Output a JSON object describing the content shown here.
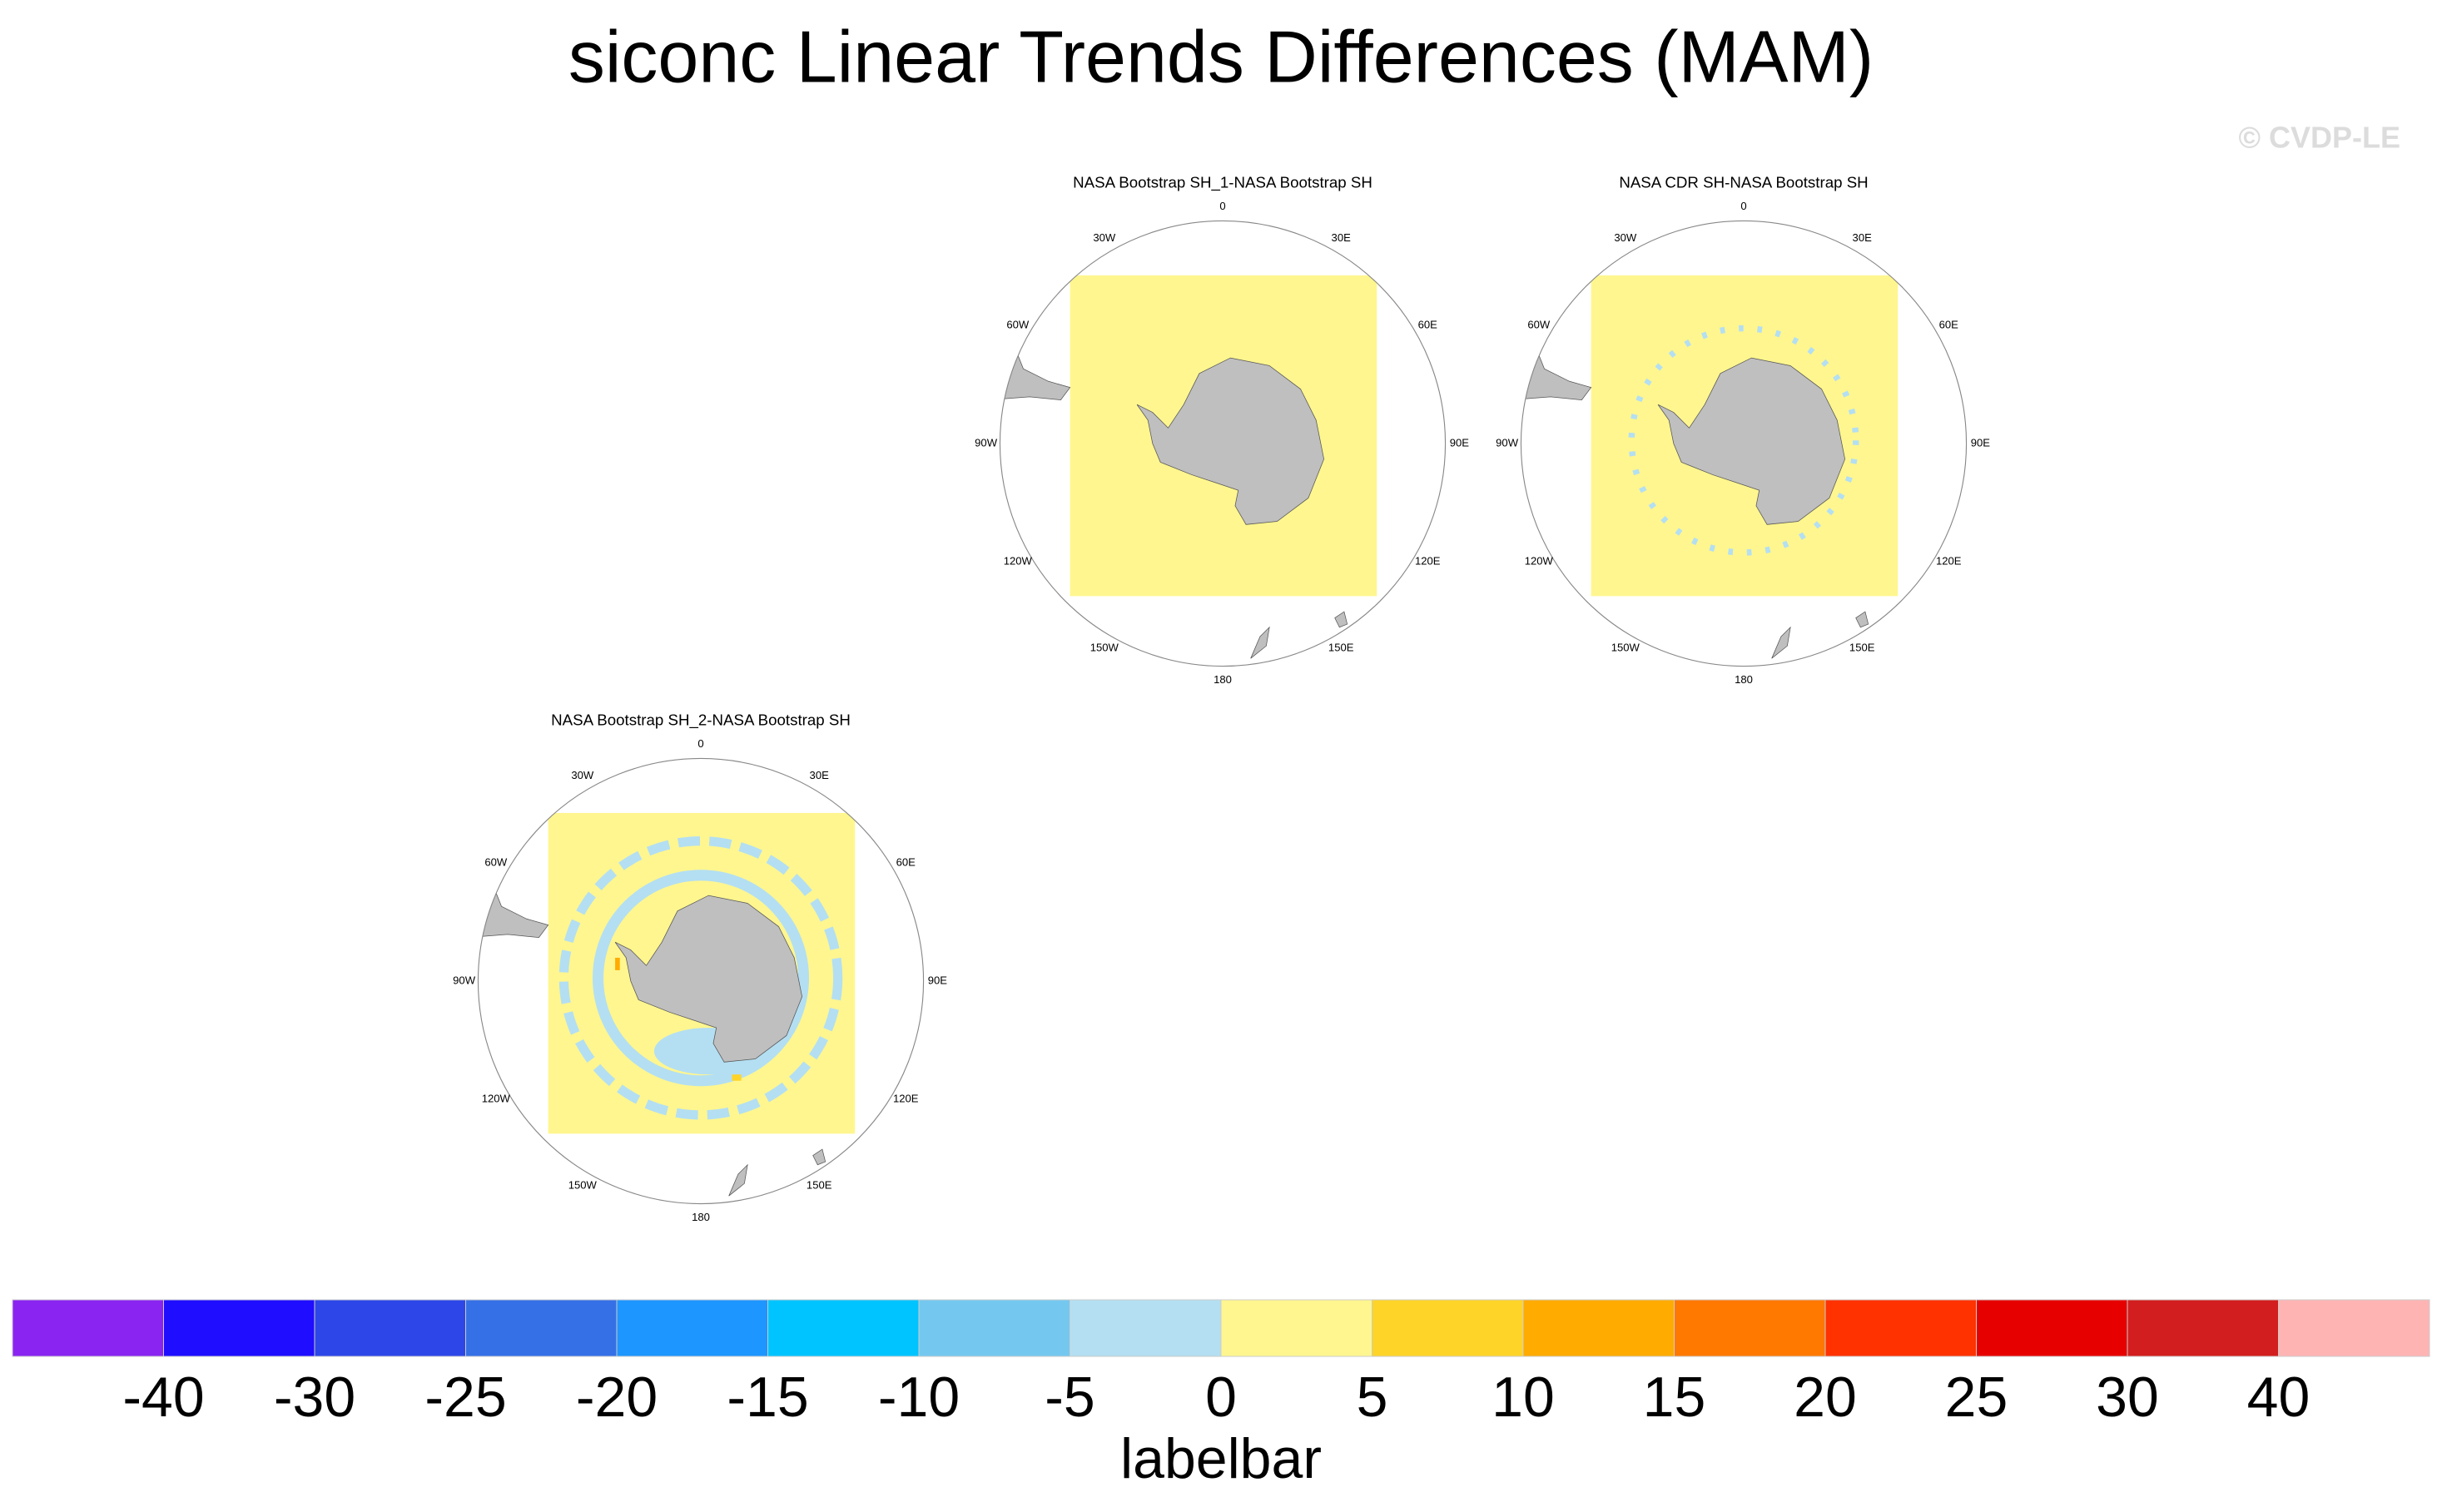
{
  "title": "siconc Linear Trends Differences (MAM)",
  "watermark": "© CVDP-LE",
  "panels": [
    {
      "title": "NASA Bootstrap SH_1-NASA Bootstrap SH",
      "lon_labels": [
        "0",
        "30E",
        "60E",
        "90E",
        "120E",
        "150E",
        "180",
        "150W",
        "120W",
        "90W",
        "60W",
        "30W"
      ]
    },
    {
      "title": "NASA CDR SH-NASA Bootstrap SH",
      "lon_labels": [
        "0",
        "30E",
        "60E",
        "90E",
        "120E",
        "150E",
        "180",
        "150W",
        "120W",
        "90W",
        "60W",
        "30W"
      ]
    },
    {
      "title": "NASA Bootstrap SH_2-NASA Bootstrap SH",
      "lon_labels": [
        "0",
        "30E",
        "60E",
        "90E",
        "120E",
        "150E",
        "180",
        "150W",
        "120W",
        "90W",
        "60W",
        "30W"
      ]
    }
  ],
  "labelbar": {
    "colors": [
      "#8a24f0",
      "#1e0dff",
      "#2d46e8",
      "#3570e6",
      "#1e96ff",
      "#00c4ff",
      "#74c8f0",
      "#b4dff2",
      "#fff68f",
      "#ffd428",
      "#ffab00",
      "#ff7800",
      "#ff3200",
      "#e60000",
      "#d21e1e",
      "#ffb4b4"
    ],
    "levels": [
      -40,
      -30,
      -25,
      -20,
      -15,
      -10,
      -5,
      0,
      5,
      10,
      15,
      20,
      25,
      30,
      40
    ],
    "title": "labelbar"
  }
}
